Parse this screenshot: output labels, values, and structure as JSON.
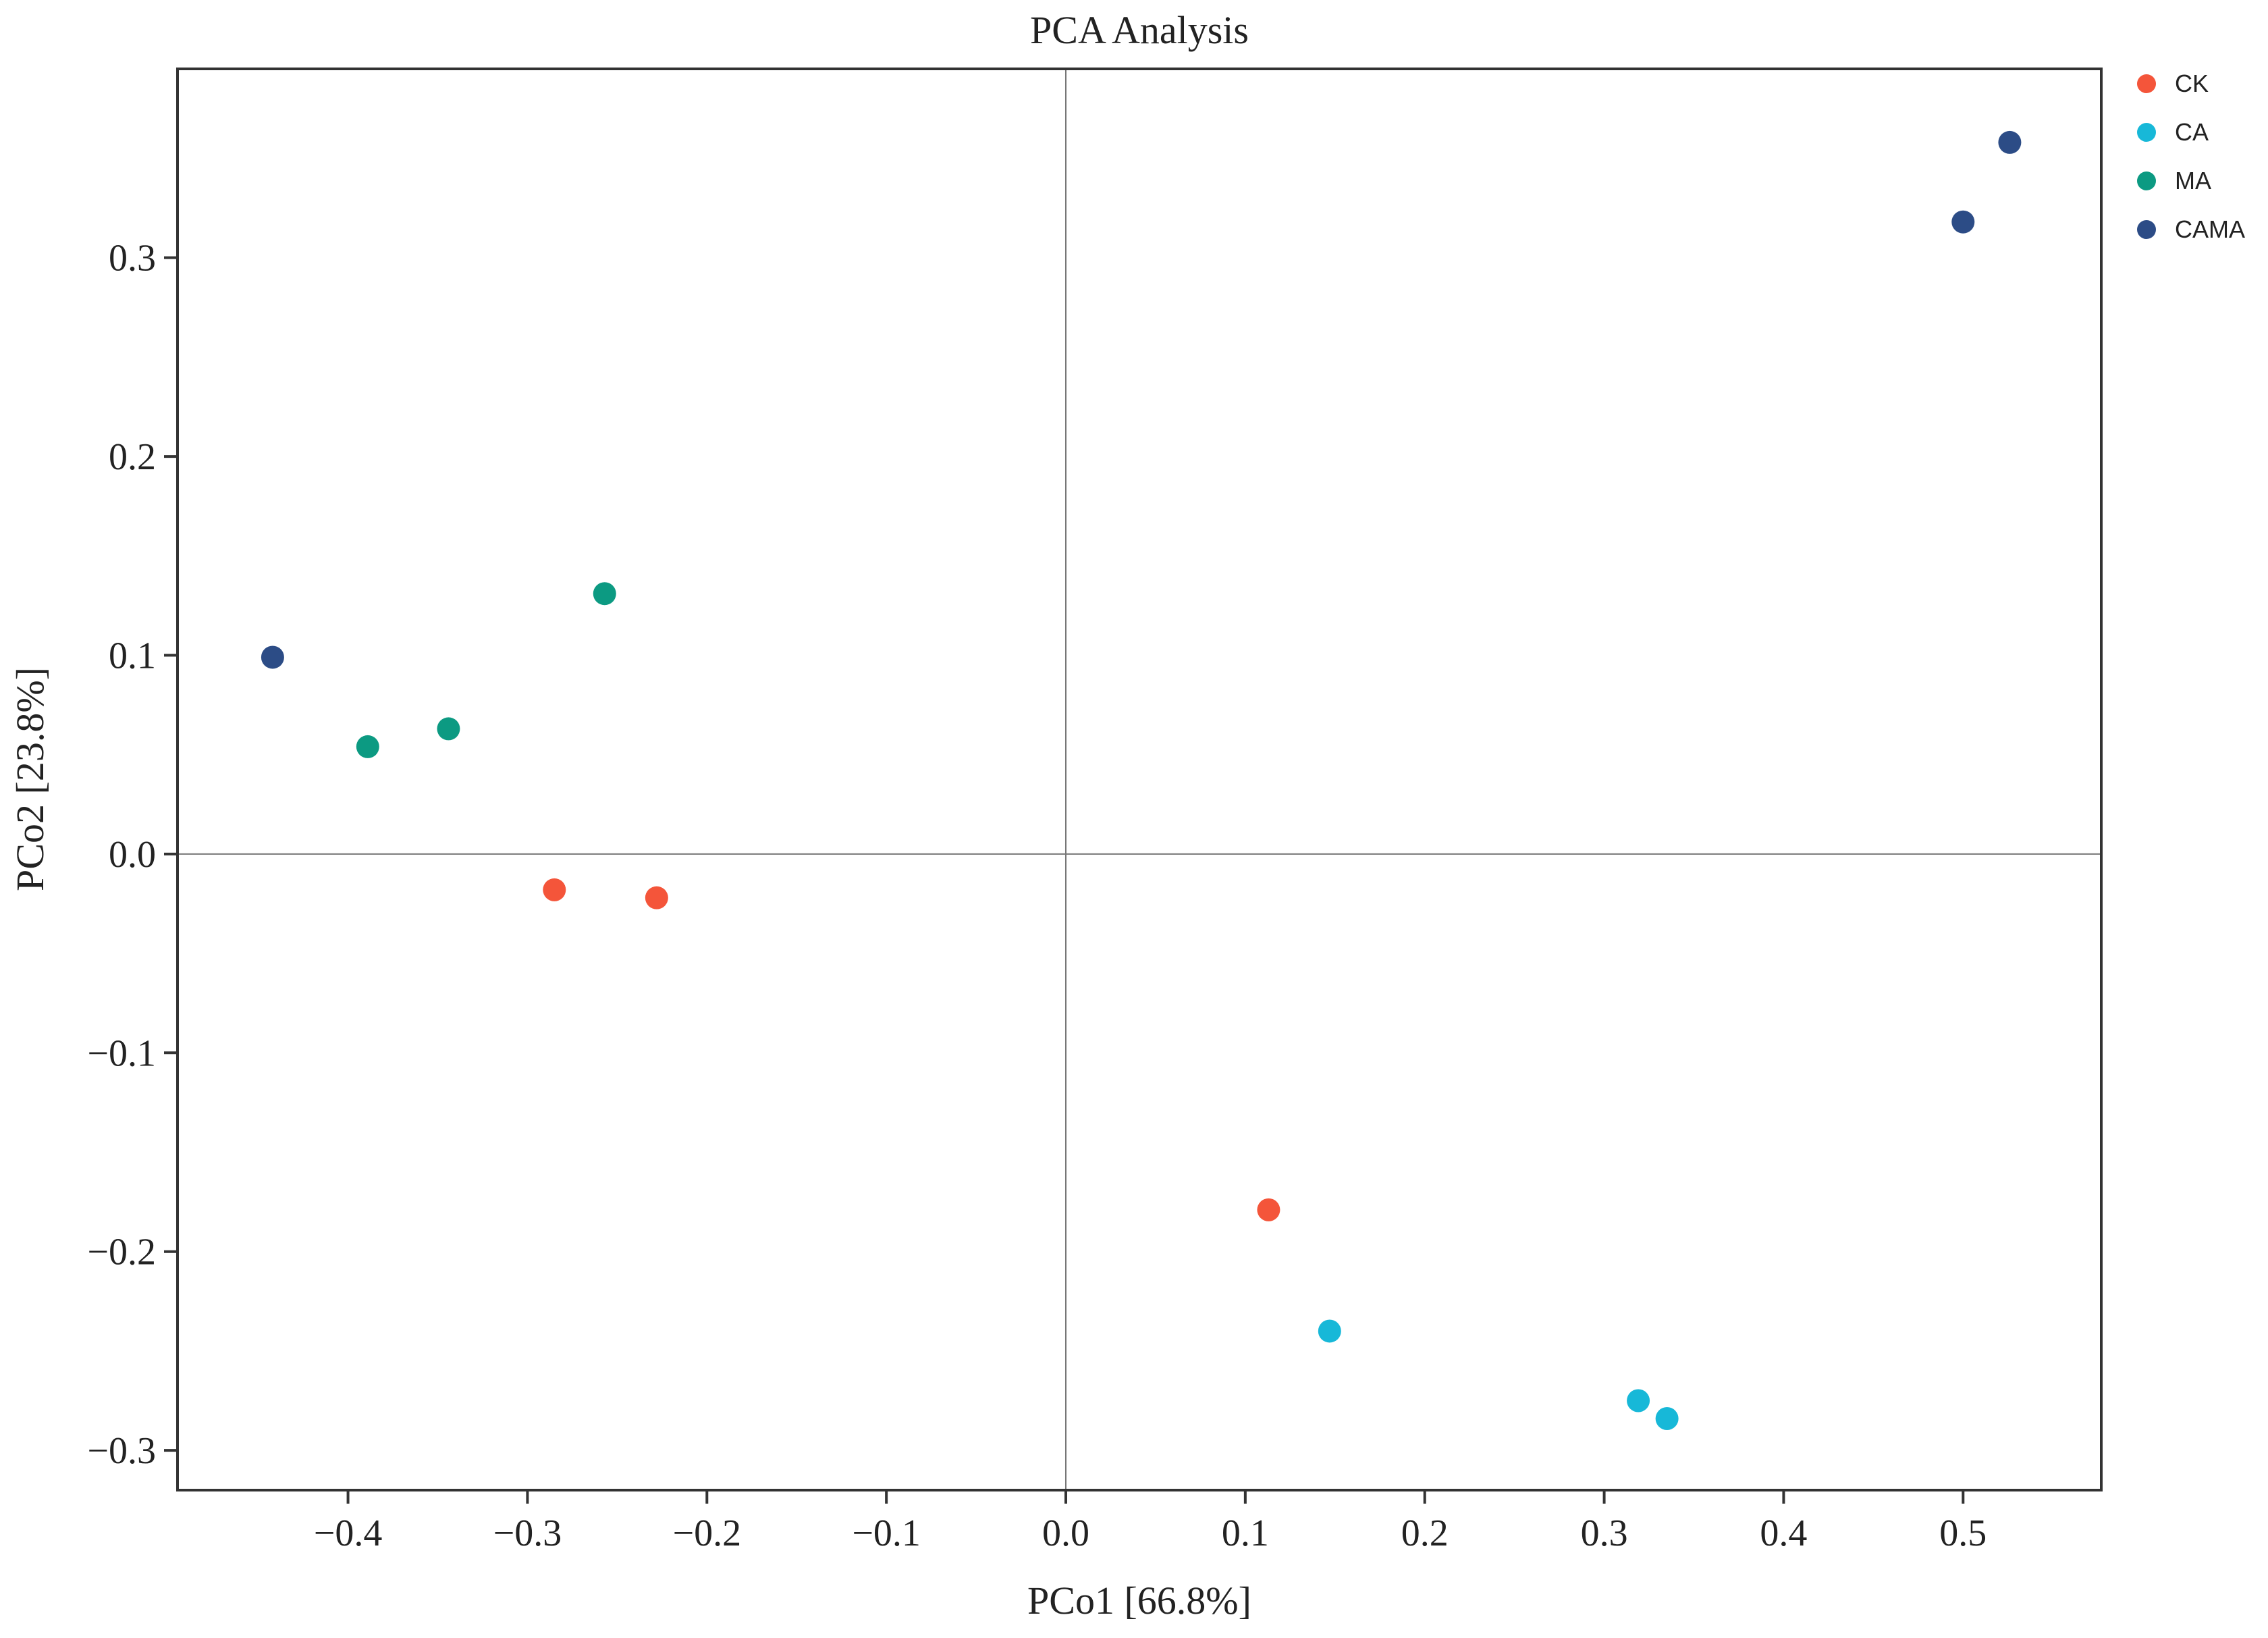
{
  "chart_data": {
    "type": "scatter",
    "title": "PCA Analysis",
    "xlabel": "PCo1 [66.8%]",
    "ylabel": "PCo2 [23.8%]",
    "xlim": [
      -0.495,
      0.577
    ],
    "ylim": [
      -0.32,
      0.395
    ],
    "xticks": [
      -0.4,
      -0.3,
      -0.2,
      -0.1,
      0.0,
      0.1,
      0.2,
      0.3,
      0.4,
      0.5
    ],
    "xtick_labels": [
      "−0.4",
      "−0.3",
      "−0.2",
      "−0.1",
      "0.0",
      "0.1",
      "0.2",
      "0.3",
      "0.4",
      "0.5"
    ],
    "yticks": [
      0.3,
      0.2,
      0.1,
      0.0,
      -0.1,
      -0.2,
      -0.3
    ],
    "ytick_labels": [
      "0.3",
      "0.2",
      "0.1",
      "0.0",
      "−0.1",
      "−0.2",
      "−0.3"
    ],
    "grid": false,
    "zero_lines": true,
    "legend_position": "right, outside top",
    "series": [
      {
        "name": "CK",
        "color": "#f4553a",
        "points": [
          [
            -0.285,
            -0.018
          ],
          [
            -0.228,
            -0.022
          ],
          [
            0.113,
            -0.179
          ]
        ]
      },
      {
        "name": "CA",
        "color": "#17b8d8",
        "points": [
          [
            0.147,
            -0.24
          ],
          [
            0.319,
            -0.275
          ],
          [
            0.335,
            -0.284
          ]
        ]
      },
      {
        "name": "MA",
        "color": "#0c9a82",
        "points": [
          [
            -0.257,
            0.131
          ],
          [
            -0.344,
            0.063
          ],
          [
            -0.389,
            0.054
          ]
        ]
      },
      {
        "name": "CAMA",
        "color": "#2c4c86",
        "points": [
          [
            0.526,
            0.358
          ],
          [
            0.5,
            0.318
          ],
          [
            -0.442,
            0.099
          ]
        ]
      }
    ]
  }
}
